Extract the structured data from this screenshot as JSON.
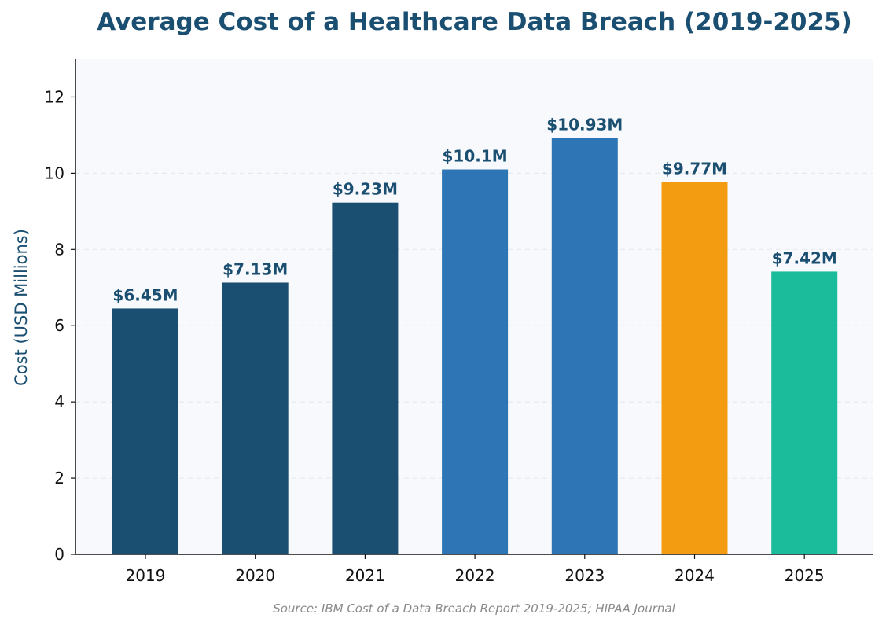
{
  "chart_data": {
    "type": "bar",
    "title": "Average Cost of a Healthcare Data Breach (2019-2025)",
    "xlabel": "",
    "ylabel": "Cost (USD Millions)",
    "categories": [
      "2019",
      "2020",
      "2021",
      "2022",
      "2023",
      "2024",
      "2025"
    ],
    "values": [
      6.45,
      7.13,
      9.23,
      10.1,
      10.93,
      9.77,
      7.42
    ],
    "value_labels": [
      "$6.45M",
      "$7.13M",
      "$9.23M",
      "$10.1M",
      "$10.93M",
      "$9.77M",
      "$7.42M"
    ],
    "bar_colors": [
      "#1b4f72",
      "#1b4f72",
      "#1b4f72",
      "#2e75b6",
      "#2e75b6",
      "#f39c12",
      "#1abc9c"
    ],
    "ylim": [
      0,
      13
    ],
    "yticks": [
      0,
      2,
      4,
      6,
      8,
      10,
      12
    ],
    "grid": "horizontal dashed",
    "legend": "none",
    "source": "Source: IBM Cost of a Data Breach Report 2019-2025; HIPAA Journal"
  },
  "colors": {
    "title": "#1b4f72",
    "plot_background": "#f8f9fc",
    "axis": "#111111",
    "grid": "#e6e9ef",
    "source": "#8a8a8a"
  }
}
